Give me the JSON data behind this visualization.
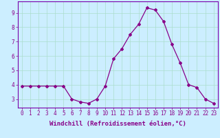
{
  "x": [
    0,
    1,
    2,
    3,
    4,
    5,
    6,
    7,
    8,
    9,
    10,
    11,
    12,
    13,
    14,
    15,
    16,
    17,
    18,
    19,
    20,
    21,
    22,
    23
  ],
  "y": [
    3.9,
    3.9,
    3.9,
    3.9,
    3.9,
    3.9,
    3.0,
    2.8,
    2.7,
    3.0,
    3.9,
    5.8,
    6.5,
    7.5,
    8.2,
    9.35,
    9.2,
    8.4,
    6.8,
    5.5,
    4.0,
    3.8,
    3.0,
    2.7
  ],
  "line_color": "#880088",
  "marker": "D",
  "markersize": 2.0,
  "linewidth": 0.9,
  "xlabel": "Windchill (Refroidissement éolien,°C)",
  "xlabel_fontsize": 6.5,
  "ylabel_ticks": [
    3,
    4,
    5,
    6,
    7,
    8,
    9
  ],
  "xtick_labels": [
    "0",
    "1",
    "2",
    "3",
    "4",
    "5",
    "6",
    "7",
    "8",
    "9",
    "10",
    "11",
    "12",
    "13",
    "14",
    "15",
    "16",
    "17",
    "18",
    "19",
    "20",
    "21",
    "22",
    "23"
  ],
  "xlim": [
    -0.5,
    23.5
  ],
  "ylim": [
    2.4,
    9.8
  ],
  "bg_color": "#cceeff",
  "grid_color": "#aaddcc",
  "tick_fontsize": 5.5,
  "spine_color": "#7700aa",
  "fig_width": 3.2,
  "fig_height": 2.0,
  "dpi": 100
}
